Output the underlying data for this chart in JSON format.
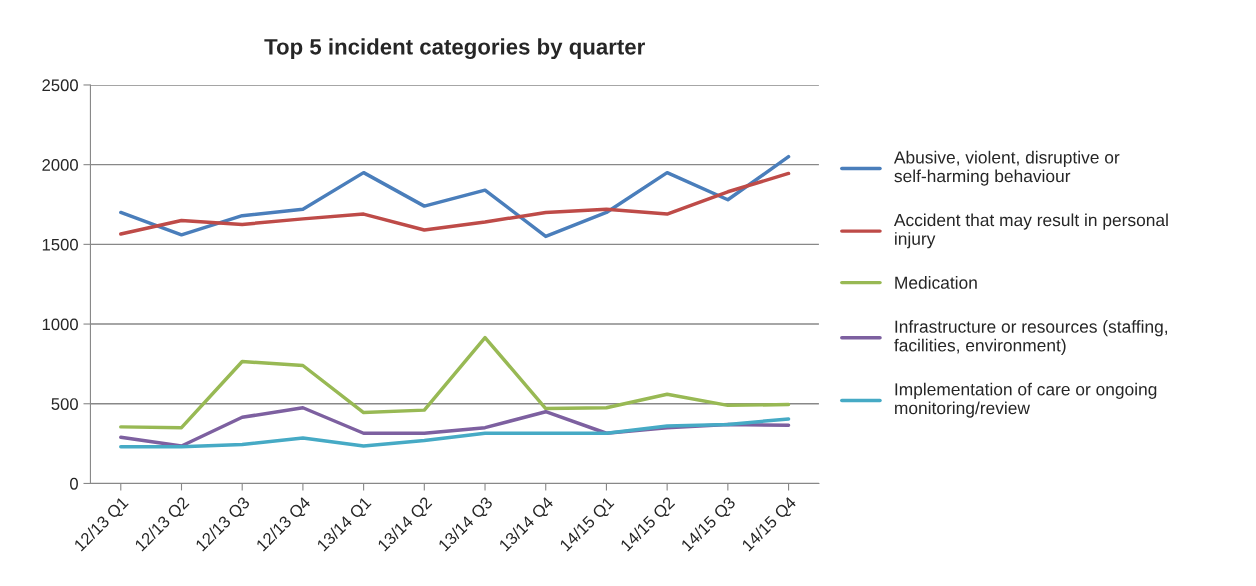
{
  "chart_data": {
    "type": "line",
    "title": "Top 5 incident categories by quarter",
    "categories": [
      "12/13 Q1",
      "12/13 Q2",
      "12/13 Q3",
      "12/13 Q4",
      "13/14 Q1",
      "13/14 Q2",
      "13/14 Q3",
      "13/14 Q4",
      "14/15 Q1",
      "14/15 Q2",
      "14/15 Q3",
      "14/15 Q4"
    ],
    "series": [
      {
        "name": "Abusive, violent, disruptive or self-harming behaviour",
        "color": "#4a7ebb",
        "values": [
          1700,
          1560,
          1680,
          1720,
          1950,
          1740,
          1840,
          1550,
          1700,
          1950,
          1780,
          2050
        ]
      },
      {
        "name": "Accident that may result in personal injury",
        "color": "#be4b48",
        "values": [
          1565,
          1650,
          1625,
          1660,
          1690,
          1590,
          1640,
          1700,
          1720,
          1690,
          1830,
          1945
        ]
      },
      {
        "name": "Medication",
        "color": "#98b954",
        "values": [
          355,
          350,
          765,
          740,
          445,
          460,
          915,
          470,
          475,
          560,
          490,
          495
        ]
      },
      {
        "name": "Infrastructure or resources (staffing, facilities, environment)",
        "color": "#7d60a0",
        "values": [
          290,
          235,
          415,
          475,
          315,
          315,
          350,
          450,
          315,
          350,
          370,
          365
        ]
      },
      {
        "name": "Implementation of care or ongoing monitoring/review",
        "color": "#46aac5",
        "values": [
          230,
          230,
          245,
          285,
          235,
          270,
          315,
          315,
          315,
          360,
          370,
          405
        ]
      }
    ],
    "ylim": [
      0,
      2500
    ],
    "yticks": [
      0,
      500,
      1000,
      1500,
      2000,
      2500
    ],
    "grid": "y",
    "legend": "right",
    "marker": "none",
    "line_style": "solid"
  }
}
